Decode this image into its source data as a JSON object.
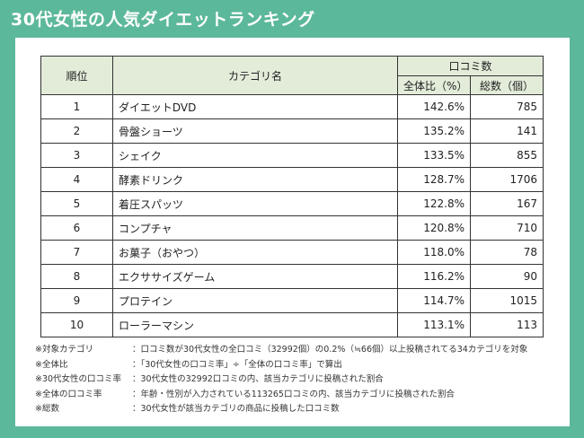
{
  "title": "30代女性の人気ダイエットランキング",
  "table": {
    "headers": {
      "rank": "順位",
      "category": "カテゴリ名",
      "kuchikomi": "口コミ数",
      "ratio": "全体比（%）",
      "total": "総数（個）"
    },
    "rows": [
      {
        "rank": "1",
        "category": "ダイエットDVD",
        "ratio": "142.6%",
        "total": "785"
      },
      {
        "rank": "2",
        "category": "骨盤ショーツ",
        "ratio": "135.2%",
        "total": "141"
      },
      {
        "rank": "3",
        "category": "シェイク",
        "ratio": "133.5%",
        "total": "855"
      },
      {
        "rank": "4",
        "category": "酵素ドリンク",
        "ratio": "128.7%",
        "total": "1706"
      },
      {
        "rank": "5",
        "category": "着圧スパッツ",
        "ratio": "122.8%",
        "total": "167"
      },
      {
        "rank": "6",
        "category": "コンプチャ",
        "ratio": "120.8%",
        "total": "710"
      },
      {
        "rank": "7",
        "category": "お菓子（おやつ）",
        "ratio": "118.0%",
        "total": "78"
      },
      {
        "rank": "8",
        "category": "エクササイズゲーム",
        "ratio": "116.2%",
        "total": "90"
      },
      {
        "rank": "9",
        "category": "プロテイン",
        "ratio": "114.7%",
        "total": "1015"
      },
      {
        "rank": "10",
        "category": "ローラーマシン",
        "ratio": "113.1%",
        "total": "113"
      }
    ]
  },
  "notes": [
    {
      "key": "※対象カテゴリ",
      "value": "：口コミ数が30代女性の全口コミ（32992個）の0.2%（≒66個）以上投稿されてる34カテゴリを対象"
    },
    {
      "key": "※全体比",
      "value": "：「30代女性の口コミ率」÷「全体の口コミ率」で算出"
    },
    {
      "key": "※30代女性の口コミ率",
      "value": "：30代女性の32992口コミの内、該当カテゴリに投稿された割合"
    },
    {
      "key": "※全体の口コミ率",
      "value": "：年齢・性別が入力されている113265口コミの内、該当カテゴリに投稿された割合"
    },
    {
      "key": "※総数",
      "value": "：30代女性が該当カテゴリの商品に投稿した口コミ数"
    }
  ]
}
